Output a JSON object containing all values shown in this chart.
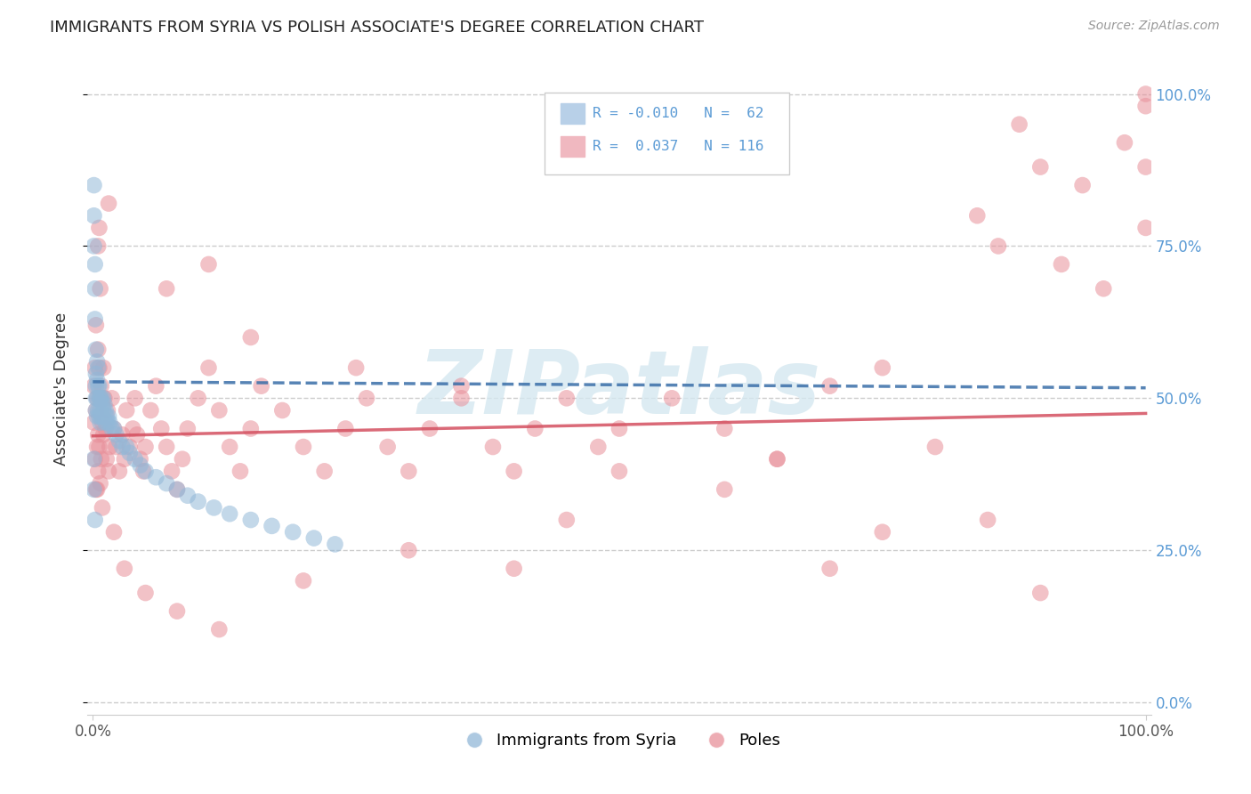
{
  "title": "IMMIGRANTS FROM SYRIA VS POLISH ASSOCIATE'S DEGREE CORRELATION CHART",
  "source": "Source: ZipAtlas.com",
  "ylabel": "Associate's Degree",
  "blue_color": "#92b8d8",
  "pink_color": "#e8909a",
  "trend_blue_color": "#3a6ea8",
  "trend_pink_color": "#d45060",
  "legend_blue_fill": "#b8d0e8",
  "legend_pink_fill": "#f0b8c0",
  "watermark": "ZIPatlas",
  "watermark_color": "#d5e8f0",
  "right_tick_color": "#5b9bd5",
  "grid_color": "#cccccc",
  "title_color": "#222222",
  "source_color": "#999999",
  "ylabel_color": "#333333",
  "background": "#ffffff",
  "syria_x": [
    0.001,
    0.001,
    0.001,
    0.002,
    0.002,
    0.002,
    0.003,
    0.003,
    0.003,
    0.003,
    0.003,
    0.004,
    0.004,
    0.004,
    0.004,
    0.005,
    0.005,
    0.005,
    0.006,
    0.006,
    0.006,
    0.007,
    0.007,
    0.007,
    0.008,
    0.008,
    0.009,
    0.009,
    0.01,
    0.01,
    0.011,
    0.012,
    0.012,
    0.013,
    0.014,
    0.015,
    0.016,
    0.018,
    0.02,
    0.022,
    0.025,
    0.028,
    0.032,
    0.035,
    0.04,
    0.045,
    0.05,
    0.06,
    0.07,
    0.08,
    0.09,
    0.1,
    0.115,
    0.13,
    0.15,
    0.17,
    0.19,
    0.21,
    0.23,
    0.001,
    0.001,
    0.002
  ],
  "syria_y": [
    0.85,
    0.8,
    0.75,
    0.72,
    0.68,
    0.63,
    0.58,
    0.54,
    0.52,
    0.5,
    0.48,
    0.56,
    0.53,
    0.5,
    0.47,
    0.55,
    0.52,
    0.48,
    0.52,
    0.5,
    0.47,
    0.5,
    0.48,
    0.46,
    0.5,
    0.47,
    0.49,
    0.47,
    0.5,
    0.48,
    0.49,
    0.48,
    0.46,
    0.47,
    0.46,
    0.47,
    0.46,
    0.45,
    0.45,
    0.44,
    0.43,
    0.42,
    0.42,
    0.41,
    0.4,
    0.39,
    0.38,
    0.37,
    0.36,
    0.35,
    0.34,
    0.33,
    0.32,
    0.31,
    0.3,
    0.29,
    0.28,
    0.27,
    0.26,
    0.4,
    0.35,
    0.3
  ],
  "poles_x": [
    0.001,
    0.001,
    0.002,
    0.002,
    0.003,
    0.003,
    0.004,
    0.004,
    0.005,
    0.005,
    0.005,
    0.006,
    0.006,
    0.007,
    0.007,
    0.008,
    0.008,
    0.009,
    0.01,
    0.01,
    0.011,
    0.012,
    0.013,
    0.014,
    0.015,
    0.016,
    0.018,
    0.02,
    0.022,
    0.025,
    0.028,
    0.03,
    0.032,
    0.035,
    0.038,
    0.04,
    0.042,
    0.045,
    0.048,
    0.05,
    0.055,
    0.06,
    0.065,
    0.07,
    0.075,
    0.08,
    0.085,
    0.09,
    0.1,
    0.11,
    0.12,
    0.13,
    0.14,
    0.15,
    0.16,
    0.18,
    0.2,
    0.22,
    0.24,
    0.26,
    0.28,
    0.3,
    0.32,
    0.35,
    0.38,
    0.4,
    0.42,
    0.45,
    0.48,
    0.5,
    0.55,
    0.6,
    0.65,
    0.7,
    0.75,
    0.8,
    0.84,
    0.86,
    0.88,
    0.9,
    0.92,
    0.94,
    0.96,
    0.98,
    1.0,
    1.0,
    1.0,
    1.0,
    0.003,
    0.004,
    0.006,
    0.007,
    0.009,
    0.02,
    0.03,
    0.05,
    0.08,
    0.12,
    0.2,
    0.3,
    0.45,
    0.6,
    0.75,
    0.9,
    0.15,
    0.25,
    0.35,
    0.5,
    0.65,
    0.85,
    0.07,
    0.11,
    0.4,
    0.7,
    0.005,
    0.015
  ],
  "poles_y": [
    0.52,
    0.46,
    0.55,
    0.4,
    0.48,
    0.35,
    0.5,
    0.42,
    0.58,
    0.44,
    0.38,
    0.55,
    0.42,
    0.5,
    0.36,
    0.52,
    0.4,
    0.46,
    0.55,
    0.44,
    0.5,
    0.45,
    0.4,
    0.48,
    0.38,
    0.42,
    0.5,
    0.45,
    0.42,
    0.38,
    0.44,
    0.4,
    0.48,
    0.42,
    0.45,
    0.5,
    0.44,
    0.4,
    0.38,
    0.42,
    0.48,
    0.52,
    0.45,
    0.42,
    0.38,
    0.35,
    0.4,
    0.45,
    0.5,
    0.55,
    0.48,
    0.42,
    0.38,
    0.45,
    0.52,
    0.48,
    0.42,
    0.38,
    0.45,
    0.5,
    0.42,
    0.38,
    0.45,
    0.52,
    0.42,
    0.38,
    0.45,
    0.5,
    0.42,
    0.38,
    0.5,
    0.45,
    0.4,
    0.52,
    0.55,
    0.42,
    0.8,
    0.75,
    0.95,
    0.88,
    0.72,
    0.85,
    0.68,
    0.92,
    0.98,
    0.88,
    0.78,
    1.0,
    0.62,
    0.35,
    0.78,
    0.68,
    0.32,
    0.28,
    0.22,
    0.18,
    0.15,
    0.12,
    0.2,
    0.25,
    0.3,
    0.35,
    0.28,
    0.18,
    0.6,
    0.55,
    0.5,
    0.45,
    0.4,
    0.3,
    0.68,
    0.72,
    0.22,
    0.22,
    0.75,
    0.82
  ],
  "xlim": [
    0.0,
    1.0
  ],
  "ylim": [
    0.0,
    1.0
  ],
  "ytick_vals": [
    0.0,
    0.25,
    0.5,
    0.75,
    1.0
  ],
  "ytick_labels_right": [
    "0.0%",
    "25.0%",
    "50.0%",
    "75.0%",
    "100.0%"
  ],
  "xtick_vals": [
    0.0,
    1.0
  ],
  "xtick_labels": [
    "0.0%",
    "100.0%"
  ],
  "syria_trend_x": [
    0.0,
    1.0
  ],
  "syria_trend_y": [
    0.527,
    0.517
  ],
  "poles_trend_x": [
    0.0,
    1.0
  ],
  "poles_trend_y": [
    0.438,
    0.475
  ]
}
